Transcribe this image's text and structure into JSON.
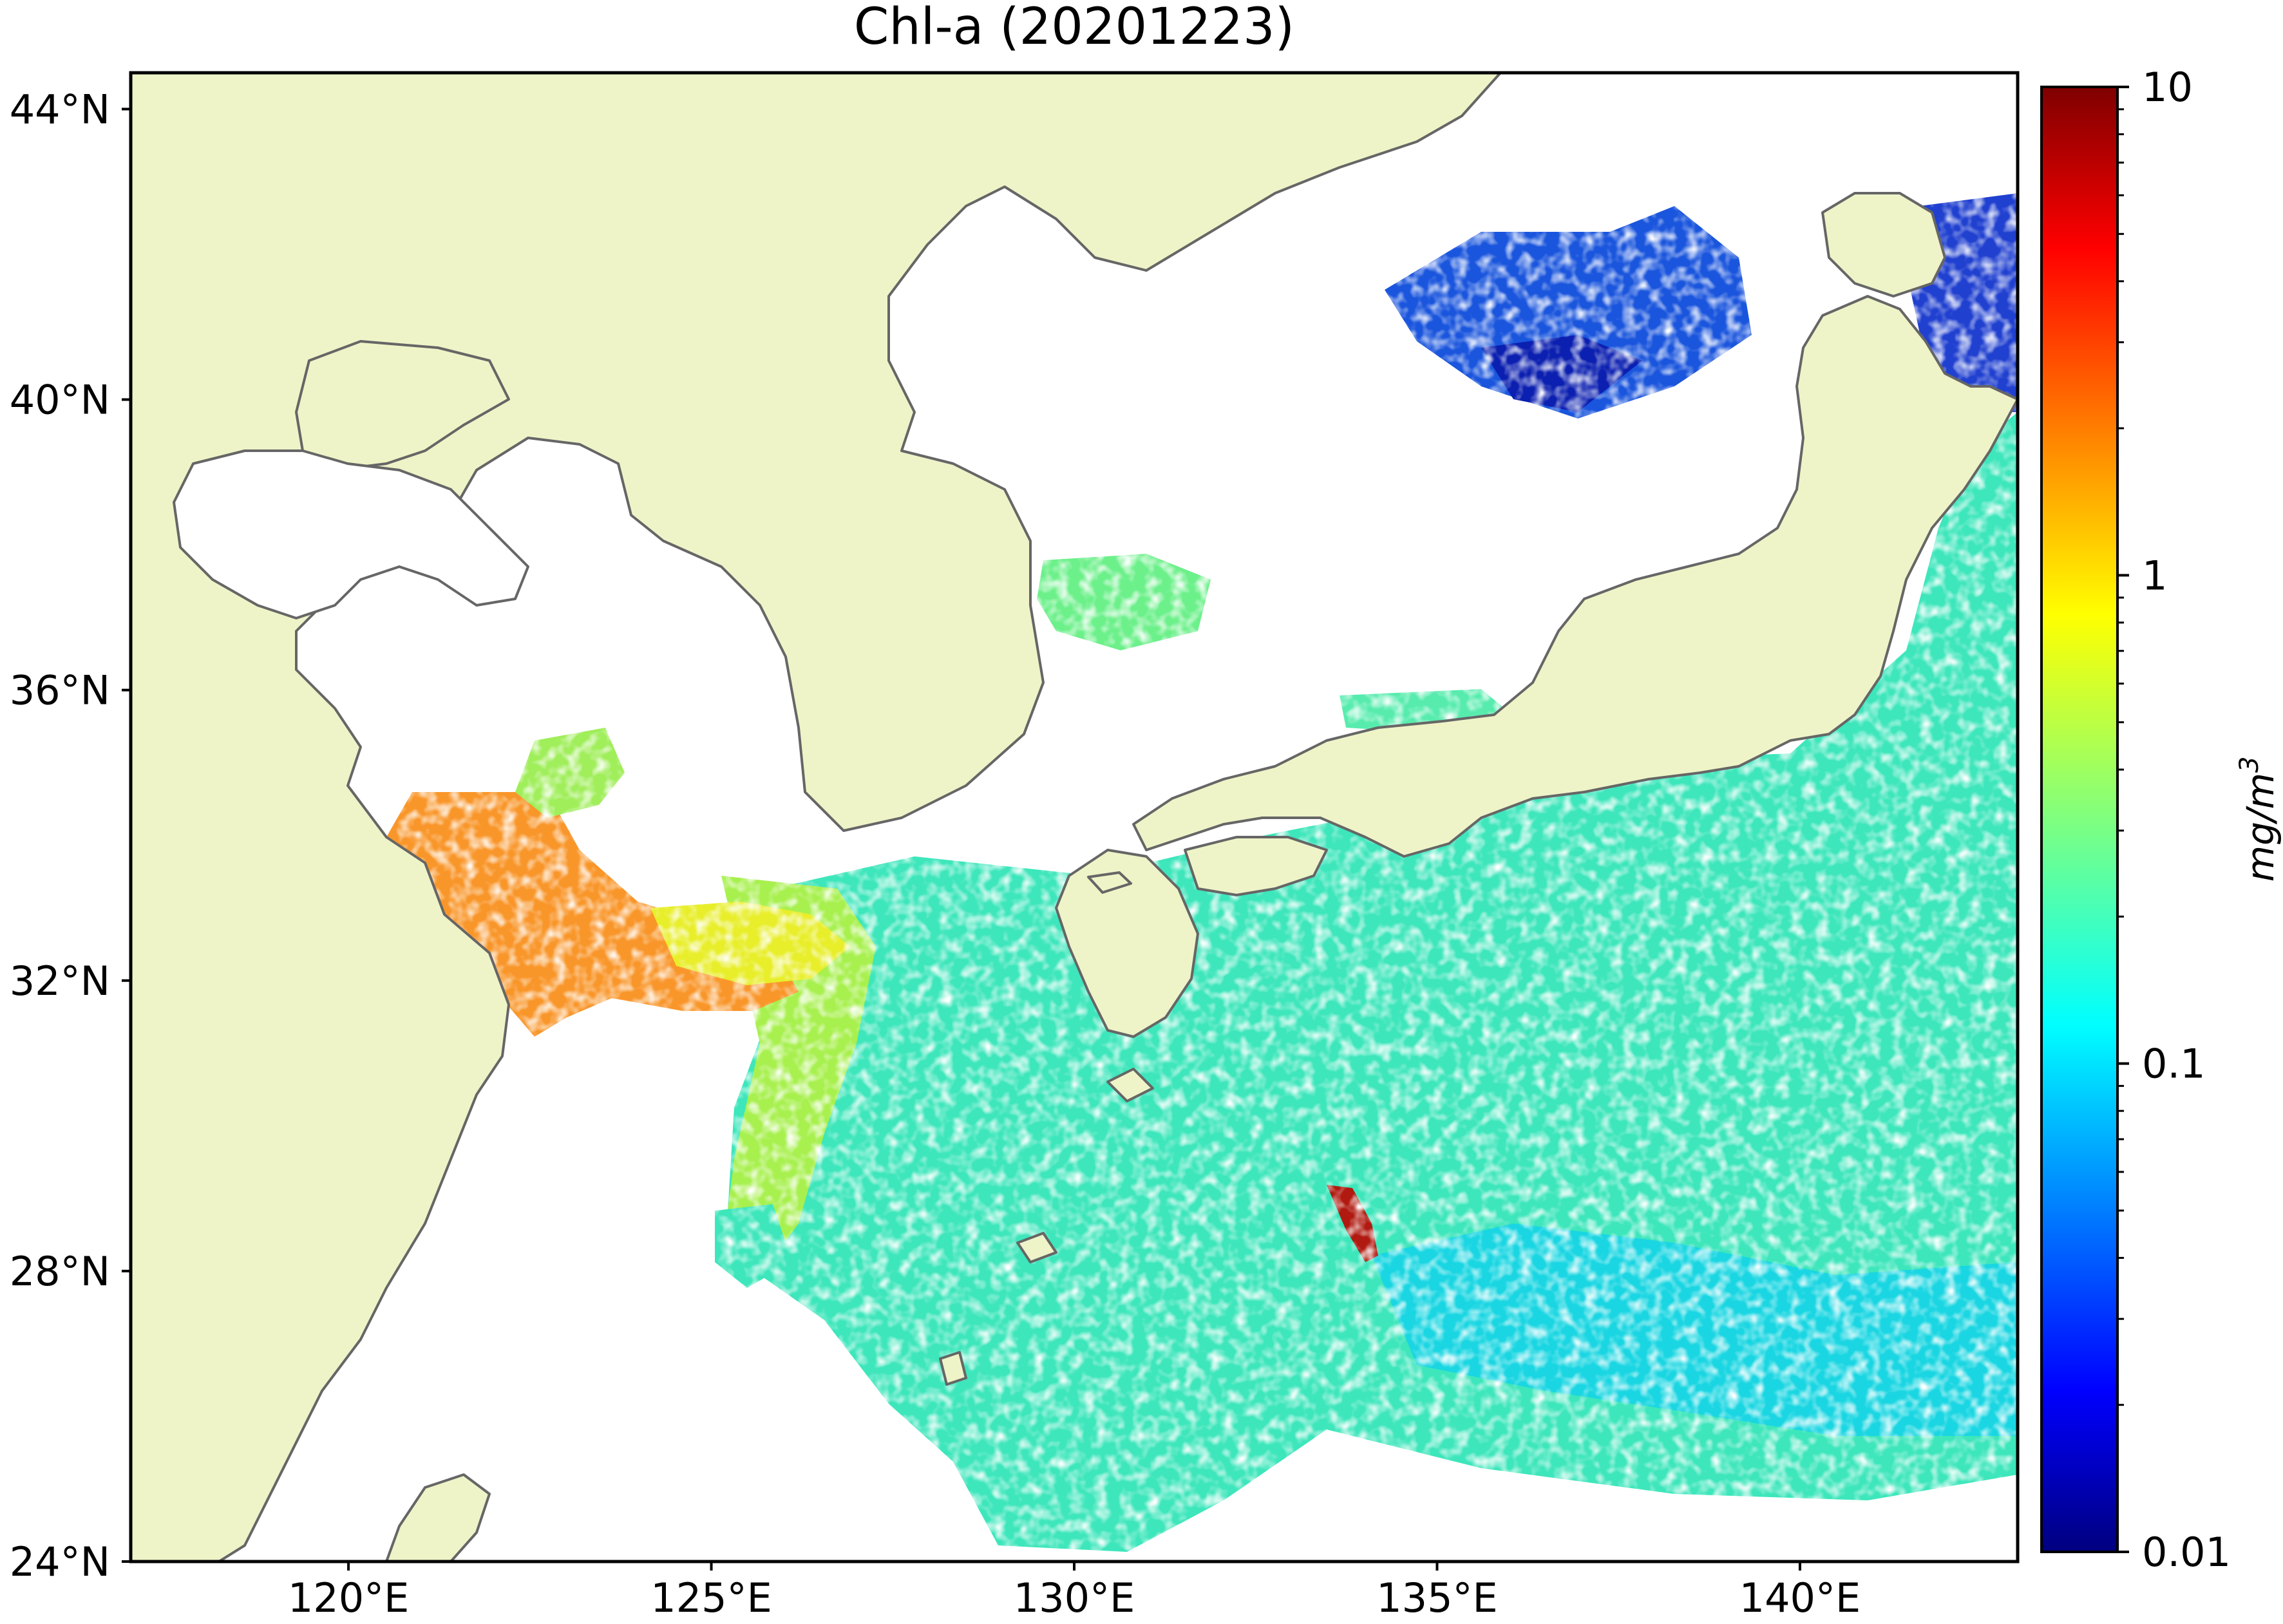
{
  "title": "Chl-a (20201223)",
  "map": {
    "extent": {
      "lon": [
        117,
        143
      ],
      "lat": [
        24,
        44.5
      ]
    },
    "land_color": "#eff4c8",
    "coast_color": "#666666",
    "ocean_nodata_color": "#ffffff",
    "lat_ticks": [
      {
        "value": 44,
        "label": "44°N"
      },
      {
        "value": 40,
        "label": "40°N"
      },
      {
        "value": 36,
        "label": "36°N"
      },
      {
        "value": 32,
        "label": "32°N"
      },
      {
        "value": 28,
        "label": "28°N"
      },
      {
        "value": 24,
        "label": "24°N"
      }
    ],
    "lon_ticks": [
      {
        "value": 120,
        "label": "120°E"
      },
      {
        "value": 125,
        "label": "125°E"
      },
      {
        "value": 130,
        "label": "130°E"
      },
      {
        "value": 135,
        "label": "135°E"
      },
      {
        "value": 140,
        "label": "140°E"
      }
    ]
  },
  "colorbar": {
    "label": "mg/m",
    "label_sup": "3",
    "scale": "log",
    "range": [
      0.01,
      10
    ],
    "ticks": [
      {
        "value": 10,
        "label": "10"
      },
      {
        "value": 1,
        "label": "1"
      },
      {
        "value": 0.1,
        "label": "0.1"
      },
      {
        "value": 0.01,
        "label": "0.01"
      }
    ],
    "colormap": [
      "#00007f",
      "#0000ff",
      "#007fff",
      "#00ffff",
      "#7fff7f",
      "#ffff00",
      "#ff7f00",
      "#ff0000",
      "#7f0000"
    ]
  }
}
